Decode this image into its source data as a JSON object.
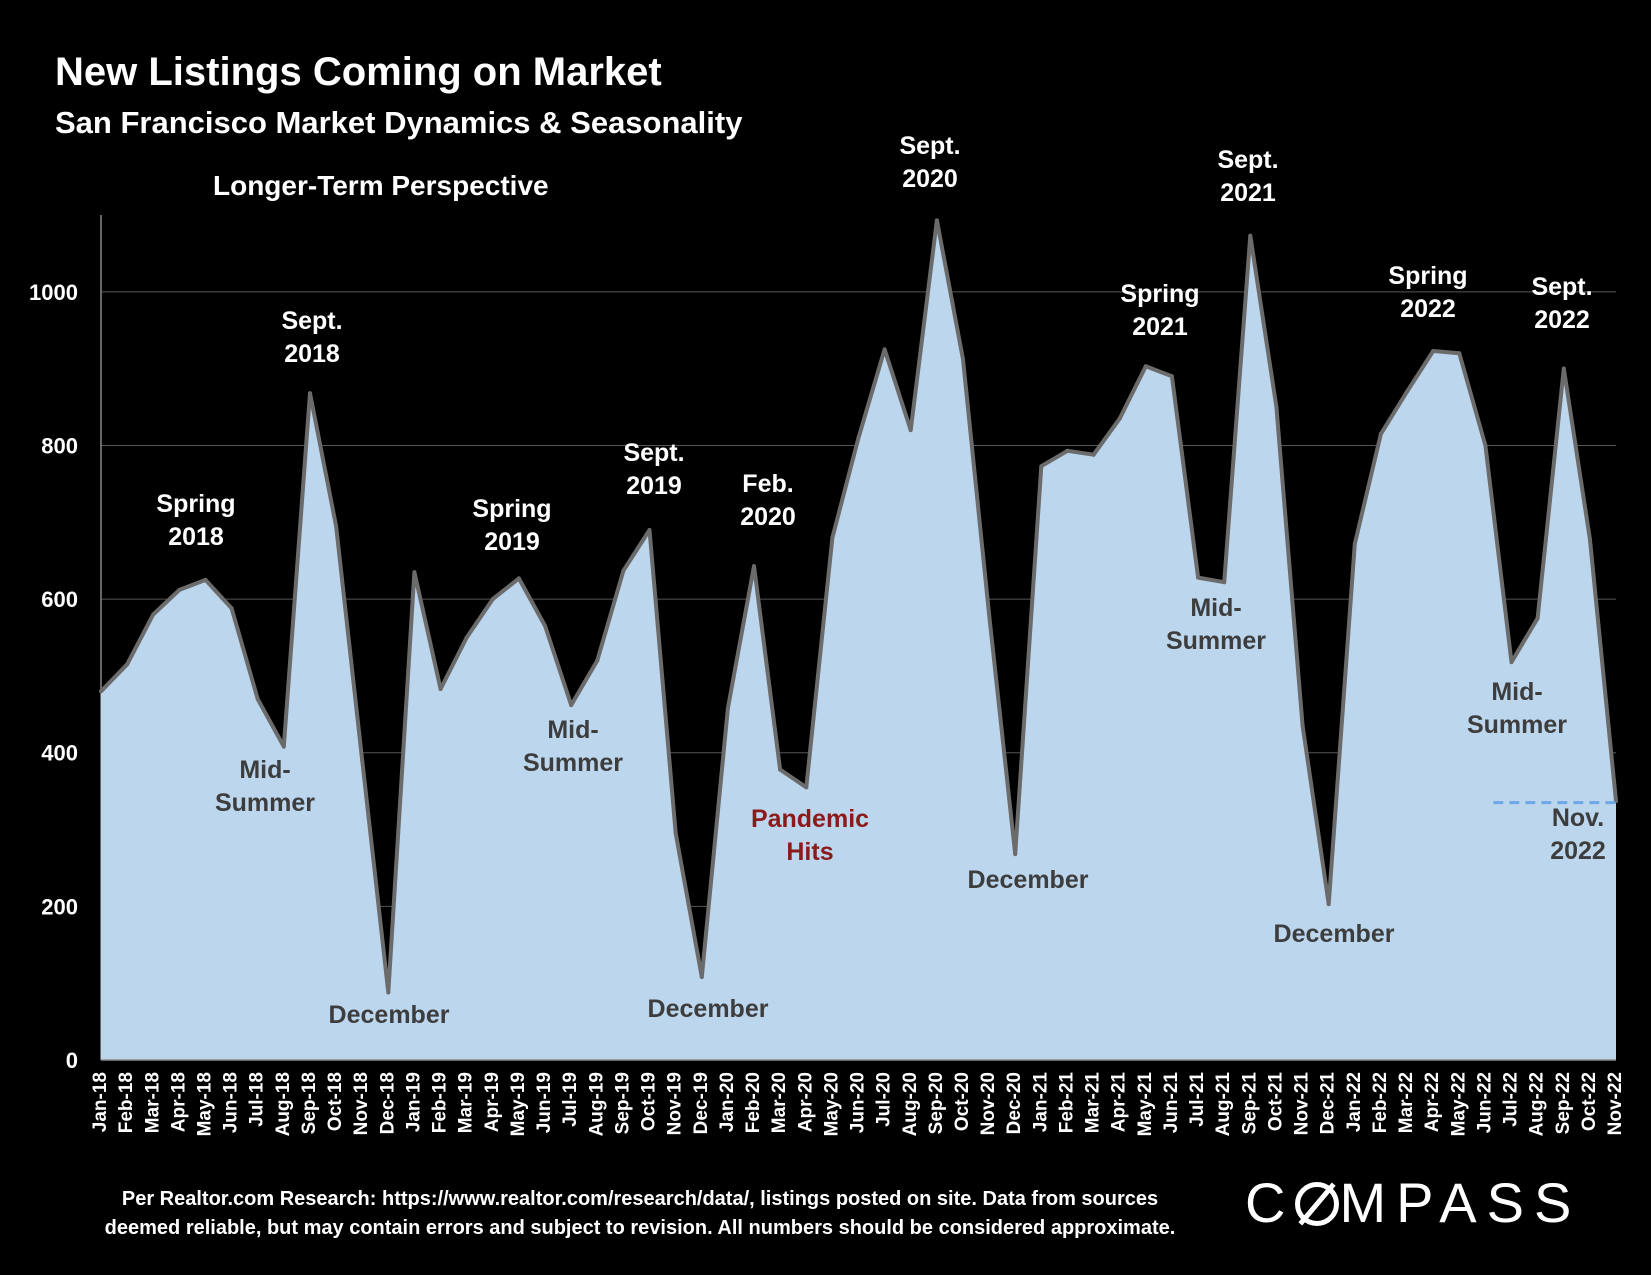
{
  "header": {
    "title": "New Listings Coming on Market",
    "subtitle": "San Francisco Market Dynamics & Seasonality",
    "perspective": "Longer-Term Perspective"
  },
  "footer": {
    "line1": "Per Realtor.com Research:  https://www.realtor.com/research/data/, listings posted on site. Data from sources",
    "line2": "deemed reliable, but may contain errors and subject to revision. All numbers should be considered approximate."
  },
  "logo": {
    "left": "C",
    "right": "MPASS",
    "full": "COMPASS"
  },
  "colors": {
    "background": "#000000",
    "area_fill": "#bcd6ee",
    "line": "#6b6b6b",
    "reference_line": "#6fa8e8",
    "pandemic": "#8b1a1a",
    "text": "#ffffff",
    "dark_text": "#3d3d3d"
  },
  "chart_data": {
    "type": "area",
    "title": "New Listings Coming on Market",
    "x": [
      "Jan-18",
      "Feb-18",
      "Mar-18",
      "Apr-18",
      "May-18",
      "Jun-18",
      "Jul-18",
      "Aug-18",
      "Sep-18",
      "Oct-18",
      "Nov-18",
      "Dec-18",
      "Jan-19",
      "Feb-19",
      "Mar-19",
      "Apr-19",
      "May-19",
      "Jun-19",
      "Jul-19",
      "Aug-19",
      "Sep-19",
      "Oct-19",
      "Nov-19",
      "Dec-19",
      "Jan-20",
      "Feb-20",
      "Mar-20",
      "Apr-20",
      "May-20",
      "Jun-20",
      "Jul-20",
      "Aug-20",
      "Sep-20",
      "Oct-20",
      "Nov-20",
      "Dec-20",
      "Jan-21",
      "Feb-21",
      "Mar-21",
      "Apr-21",
      "May-21",
      "Jun-21",
      "Jul-21",
      "Aug-21",
      "Sep-21",
      "Oct-21",
      "Nov-21",
      "Dec-21",
      "Jan-22",
      "Feb-22",
      "Mar-22",
      "Apr-22",
      "May-22",
      "Jun-22",
      "Jul-22",
      "Aug-22",
      "Sep-22",
      "Oct-22",
      "Nov-22"
    ],
    "series": [
      {
        "values": [
          480,
          515,
          580,
          612,
          625,
          588,
          470,
          408,
          868,
          695,
          390,
          88,
          635,
          483,
          550,
          600,
          627,
          565,
          462,
          520,
          637,
          690,
          295,
          108,
          458,
          643,
          378,
          355,
          680,
          810,
          925,
          820,
          1093,
          912,
          580,
          268,
          773,
          793,
          788,
          835,
          903,
          890,
          628,
          622,
          1073,
          850,
          435,
          203,
          672,
          815,
          870,
          923,
          920,
          800,
          518,
          575,
          900,
          678,
          337
        ]
      }
    ],
    "reference_line": {
      "value": 335,
      "from": "Jun-22",
      "to": "Nov-22",
      "style": "dashed"
    },
    "ylim": [
      0,
      1100
    ],
    "yticks": [
      0,
      200,
      400,
      600,
      800,
      1000
    ],
    "grid": true,
    "annotations": [
      {
        "text": [
          "Spring",
          "2018"
        ],
        "at": "Apr-18",
        "style": "light"
      },
      {
        "text": [
          "Sept.",
          "2018"
        ],
        "at": "Sep-18",
        "style": "light"
      },
      {
        "text": [
          "Mid-",
          "Summer"
        ],
        "at": "Jul-18",
        "style": "dark"
      },
      {
        "text": [
          "December"
        ],
        "at": "Dec-18",
        "style": "dark"
      },
      {
        "text": [
          "Spring",
          "2019"
        ],
        "at": "Apr-19",
        "style": "light"
      },
      {
        "text": [
          "Mid-",
          "Summer"
        ],
        "at": "Jul-19",
        "style": "dark"
      },
      {
        "text": [
          "Sept.",
          "2019"
        ],
        "at": "Oct-19",
        "style": "light"
      },
      {
        "text": [
          "December"
        ],
        "at": "Dec-19",
        "style": "dark"
      },
      {
        "text": [
          "Feb.",
          "2020"
        ],
        "at": "Feb-20",
        "style": "light"
      },
      {
        "text": [
          "Pandemic",
          "Hits"
        ],
        "at": "Mar-20",
        "style": "pandemic"
      },
      {
        "text": [
          "Sept.",
          "2020"
        ],
        "at": "Sep-20",
        "style": "light"
      },
      {
        "text": [
          "December"
        ],
        "at": "Dec-20",
        "style": "dark"
      },
      {
        "text": [
          "Spring",
          "2021"
        ],
        "at": "May-21",
        "style": "light"
      },
      {
        "text": [
          "Sept.",
          "2021"
        ],
        "at": "Sep-21",
        "style": "light"
      },
      {
        "text": [
          "Mid-",
          "Summer"
        ],
        "at": "Aug-21",
        "style": "dark"
      },
      {
        "text": [
          "December"
        ],
        "at": "Dec-21",
        "style": "dark"
      },
      {
        "text": [
          "Spring",
          "2022"
        ],
        "at": "Apr-22",
        "style": "light"
      },
      {
        "text": [
          "Sept.",
          "2022"
        ],
        "at": "Sep-22",
        "style": "light"
      },
      {
        "text": [
          "Mid-",
          "Summer"
        ],
        "at": "Jul-22",
        "style": "dark"
      },
      {
        "text": [
          "Nov.",
          "2022"
        ],
        "at": "Nov-22",
        "style": "dark"
      }
    ]
  }
}
